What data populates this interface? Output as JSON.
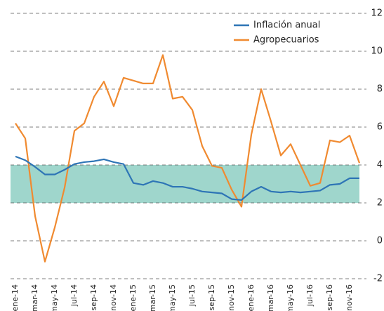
{
  "chart_data": {
    "type": "line",
    "categories": [
      "ene-14",
      null,
      "mar-14",
      null,
      "may-14",
      null,
      "jul-14",
      null,
      "sep-14",
      null,
      "nov-14",
      null,
      "ene-15",
      null,
      "mar-15",
      null,
      "may-15",
      null,
      "jul-15",
      null,
      "sep-15",
      null,
      "nov-15",
      null,
      "ene-16",
      null,
      "mar-16",
      null,
      "may-16",
      null,
      "jul-16",
      null,
      "sep-16",
      null,
      "nov-16",
      null
    ],
    "series": [
      {
        "name": "Inflación anual",
        "color": "#2e75b6",
        "values": [
          4.45,
          4.25,
          3.9,
          3.5,
          3.5,
          3.75,
          4.05,
          4.15,
          4.2,
          4.3,
          4.15,
          4.05,
          3.05,
          2.95,
          3.15,
          3.05,
          2.85,
          2.85,
          2.75,
          2.6,
          2.55,
          2.5,
          2.2,
          2.15,
          2.6,
          2.85,
          2.6,
          2.55,
          2.6,
          2.55,
          2.6,
          2.65,
          2.95,
          3.0,
          3.3,
          3.3
        ]
      },
      {
        "name": "Agropecuarios",
        "color": "#f08a30",
        "values": [
          6.2,
          5.4,
          1.3,
          -1.1,
          0.7,
          2.8,
          5.8,
          6.2,
          7.6,
          8.4,
          7.1,
          8.6,
          8.45,
          8.3,
          8.3,
          9.8,
          7.5,
          7.6,
          6.9,
          5.0,
          3.95,
          3.85,
          2.7,
          1.8,
          5.6,
          8.0,
          6.3,
          4.5,
          5.1,
          4.0,
          2.9,
          3.05,
          5.3,
          5.2,
          5.55,
          4.1
        ]
      }
    ],
    "band": [
      2,
      4
    ],
    "band_color": "#9fd6cc",
    "ylim": [
      -2,
      12
    ],
    "yticks": [
      -2,
      0,
      2,
      4,
      6,
      8,
      10,
      12
    ],
    "grid": true,
    "legend": "top-right"
  }
}
